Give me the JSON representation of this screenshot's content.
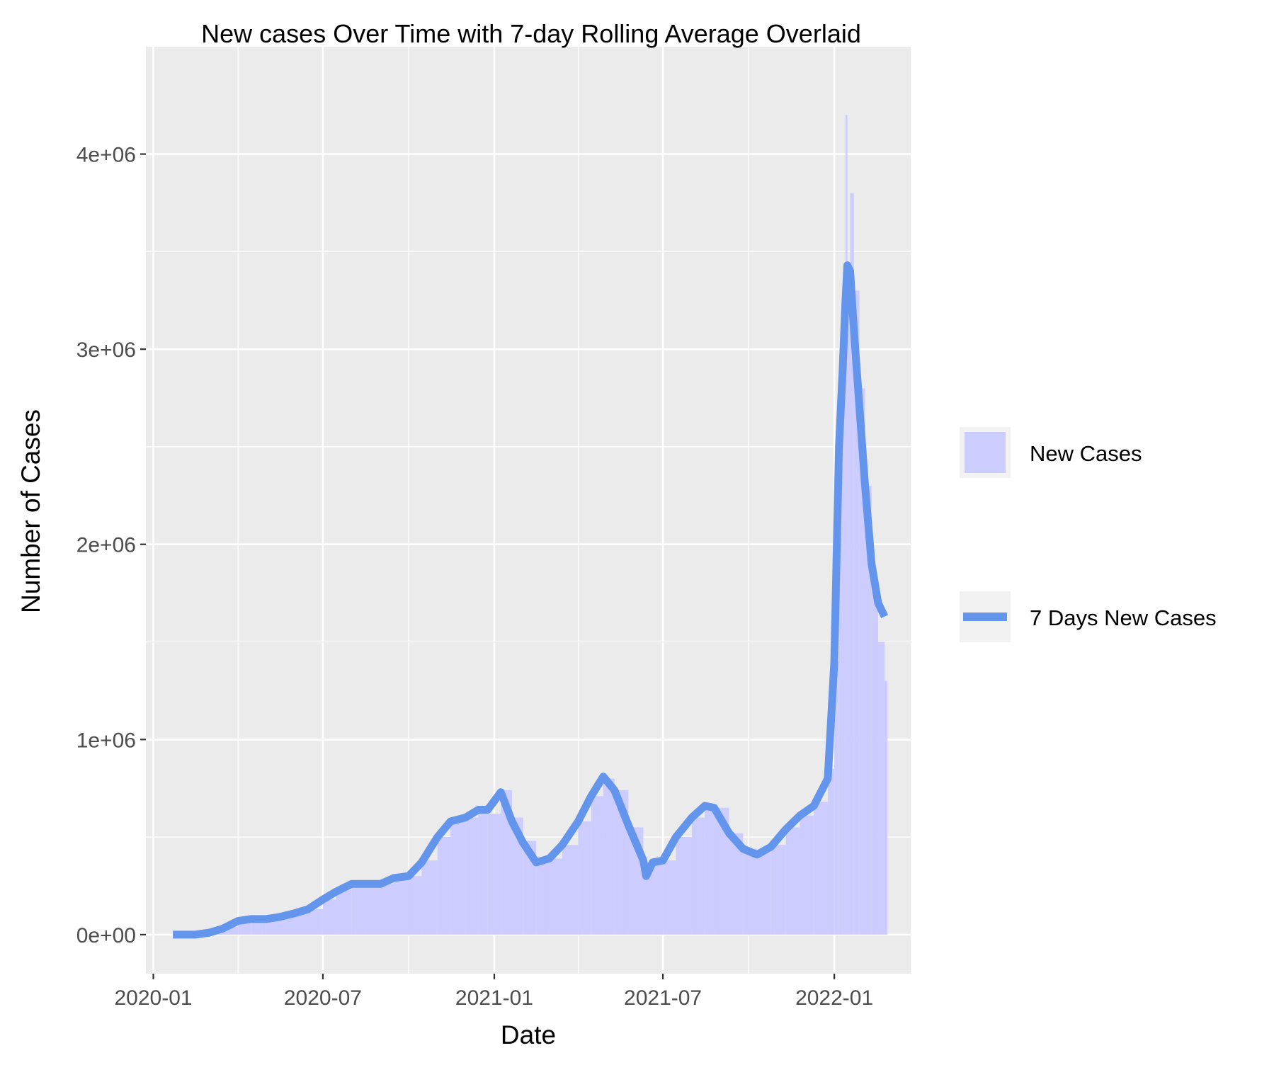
{
  "chart_data": {
    "type": "line",
    "title": "New cases Over Time with 7-day Rolling Average Overlaid",
    "xlabel": "Date",
    "ylabel": "Number of Cases",
    "x_ticks": [
      "2020-01",
      "2020-07",
      "2021-01",
      "2021-07",
      "2022-01"
    ],
    "y_ticks": [
      "0e+00",
      "1e+06",
      "2e+06",
      "3e+06",
      "4e+06"
    ],
    "x_range": [
      "2019-12-24",
      "2022-03-24"
    ],
    "ylim": [
      -200000,
      4550000
    ],
    "grid": true,
    "legend_position": "right",
    "colors": {
      "panel_background": "#EBEBEB",
      "bar_fill": "#CCCCFF",
      "line": "#6495ED",
      "grid": "#FFFFFF",
      "legend_key_background": "#F2F2F2"
    },
    "series": [
      {
        "name": "New Cases",
        "kind": "bar",
        "x": [
          "2020-01-22",
          "2020-02-15",
          "2020-03-01",
          "2020-03-15",
          "2020-04-01",
          "2020-04-15",
          "2020-05-01",
          "2020-05-15",
          "2020-06-01",
          "2020-06-15",
          "2020-07-01",
          "2020-07-15",
          "2020-08-01",
          "2020-08-15",
          "2020-09-01",
          "2020-09-15",
          "2020-10-01",
          "2020-10-15",
          "2020-11-01",
          "2020-11-15",
          "2020-12-01",
          "2020-12-15",
          "2020-12-25",
          "2021-01-08",
          "2021-01-20",
          "2021-02-01",
          "2021-02-15",
          "2021-03-01",
          "2021-03-15",
          "2021-04-01",
          "2021-04-15",
          "2021-04-28",
          "2021-05-10",
          "2021-05-25",
          "2021-06-10",
          "2021-06-20",
          "2021-07-01",
          "2021-07-15",
          "2021-08-01",
          "2021-08-15",
          "2021-08-25",
          "2021-09-10",
          "2021-09-25",
          "2021-10-10",
          "2021-10-25",
          "2021-11-10",
          "2021-11-25",
          "2021-12-10",
          "2021-12-25",
          "2022-01-01",
          "2022-01-06",
          "2022-01-10",
          "2022-01-13",
          "2022-01-15",
          "2022-01-18",
          "2022-01-22",
          "2022-01-28",
          "2022-02-03",
          "2022-02-10",
          "2022-02-17",
          "2022-02-24"
        ],
        "values": [
          0,
          2000,
          10000,
          40000,
          70000,
          80000,
          80000,
          90000,
          110000,
          130000,
          180000,
          230000,
          260000,
          250000,
          260000,
          290000,
          300000,
          380000,
          500000,
          590000,
          600000,
          650000,
          620000,
          740000,
          600000,
          480000,
          370000,
          390000,
          460000,
          580000,
          710000,
          800000,
          740000,
          550000,
          370000,
          370000,
          380000,
          500000,
          600000,
          670000,
          650000,
          520000,
          440000,
          420000,
          460000,
          550000,
          610000,
          680000,
          850000,
          1400000,
          2400000,
          3000000,
          4200000,
          3400000,
          3800000,
          3300000,
          2800000,
          2300000,
          1800000,
          1500000,
          1300000
        ]
      },
      {
        "name": "7 Days New Cases",
        "kind": "line",
        "x": [
          "2020-01-22",
          "2020-02-15",
          "2020-03-01",
          "2020-03-15",
          "2020-04-01",
          "2020-04-15",
          "2020-05-01",
          "2020-05-15",
          "2020-06-01",
          "2020-06-15",
          "2020-07-01",
          "2020-07-15",
          "2020-08-01",
          "2020-08-15",
          "2020-09-01",
          "2020-09-15",
          "2020-10-01",
          "2020-10-15",
          "2020-11-01",
          "2020-11-15",
          "2020-12-01",
          "2020-12-15",
          "2020-12-25",
          "2021-01-08",
          "2021-01-20",
          "2021-02-01",
          "2021-02-15",
          "2021-03-01",
          "2021-03-15",
          "2021-04-01",
          "2021-04-15",
          "2021-04-28",
          "2021-05-10",
          "2021-05-25",
          "2021-06-10",
          "2021-06-13",
          "2021-06-20",
          "2021-07-01",
          "2021-07-15",
          "2021-08-01",
          "2021-08-15",
          "2021-08-25",
          "2021-09-10",
          "2021-09-25",
          "2021-10-10",
          "2021-10-25",
          "2021-11-10",
          "2021-11-25",
          "2021-12-10",
          "2021-12-25",
          "2022-01-01",
          "2022-01-06",
          "2022-01-10",
          "2022-01-13",
          "2022-01-15",
          "2022-01-18",
          "2022-01-22",
          "2022-01-28",
          "2022-02-03",
          "2022-02-10",
          "2022-02-17",
          "2022-02-24"
        ],
        "values": [
          0,
          0,
          10000,
          30000,
          70000,
          80000,
          80000,
          90000,
          110000,
          130000,
          180000,
          220000,
          260000,
          260000,
          260000,
          290000,
          300000,
          370000,
          500000,
          580000,
          600000,
          640000,
          640000,
          730000,
          580000,
          470000,
          370000,
          390000,
          460000,
          580000,
          710000,
          810000,
          740000,
          560000,
          380000,
          300000,
          370000,
          380000,
          500000,
          600000,
          660000,
          650000,
          520000,
          440000,
          410000,
          450000,
          540000,
          610000,
          660000,
          800000,
          1400000,
          2500000,
          2900000,
          3250000,
          3430000,
          3400000,
          3100000,
          2700000,
          2300000,
          1900000,
          1700000,
          1630000
        ]
      }
    ]
  }
}
